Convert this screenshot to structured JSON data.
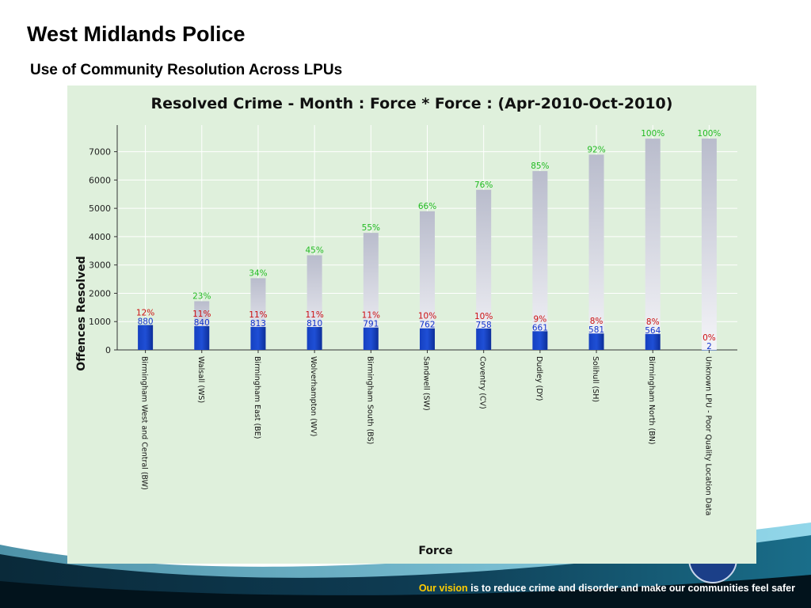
{
  "slide": {
    "title": "West Midlands Police",
    "subtitle": "Use of Community Resolution Across LPUs"
  },
  "footer": {
    "highlight": "Our vision",
    "text": " is to reduce crime and disorder and make our communities feel safer"
  },
  "colors": {
    "panel_bg": "#dff0dc",
    "bar_blue": "#1f4fd6",
    "bar_grey": "#b9bccc",
    "pct_green": "#22bb22",
    "pct_red": "#cc1111",
    "value_blue": "#1133cc",
    "footer_accent": "#ffcc00"
  },
  "chart_data": {
    "type": "bar",
    "title": "Resolved Crime - Month : Force * Force : (Apr-2010-Oct-2010)",
    "xlabel": "Force",
    "ylabel": "Offences Resolved",
    "ylim": [
      0,
      7800
    ],
    "yticks": [
      0,
      1000,
      2000,
      3000,
      4000,
      5000,
      6000,
      7000
    ],
    "grid": true,
    "categories": [
      "Birmingham West and Central (BW)",
      "Walsall (WS)",
      "Birmingham East (BE)",
      "Wolverhampton (WV)",
      "Birmingham South (BS)",
      "Sandwell (SW)",
      "Coventry (CV)",
      "Dudley (DY)",
      "Solihull (SH)",
      "Birmingham North (BN)",
      "Unknown LPU - Poor Quality Location Data"
    ],
    "values": [
      880,
      840,
      813,
      810,
      791,
      762,
      758,
      661,
      581,
      564,
      2
    ],
    "value_labels": [
      "880",
      "840",
      "813",
      "810",
      "791",
      "762",
      "758",
      "661",
      "581",
      "564",
      "2"
    ],
    "percent_labels": [
      "12%",
      "11%",
      "11%",
      "11%",
      "11%",
      "10%",
      "10%",
      "9%",
      "8%",
      "8%",
      "0%"
    ],
    "cumulative_values": [
      880,
      1720,
      2533,
      3343,
      4134,
      4896,
      5654,
      6315,
      6896,
      7460,
      7462
    ],
    "cumulative_percent_labels": [
      "",
      "23%",
      "34%",
      "45%",
      "55%",
      "66%",
      "76%",
      "85%",
      "92%",
      "100%",
      "100%"
    ]
  }
}
